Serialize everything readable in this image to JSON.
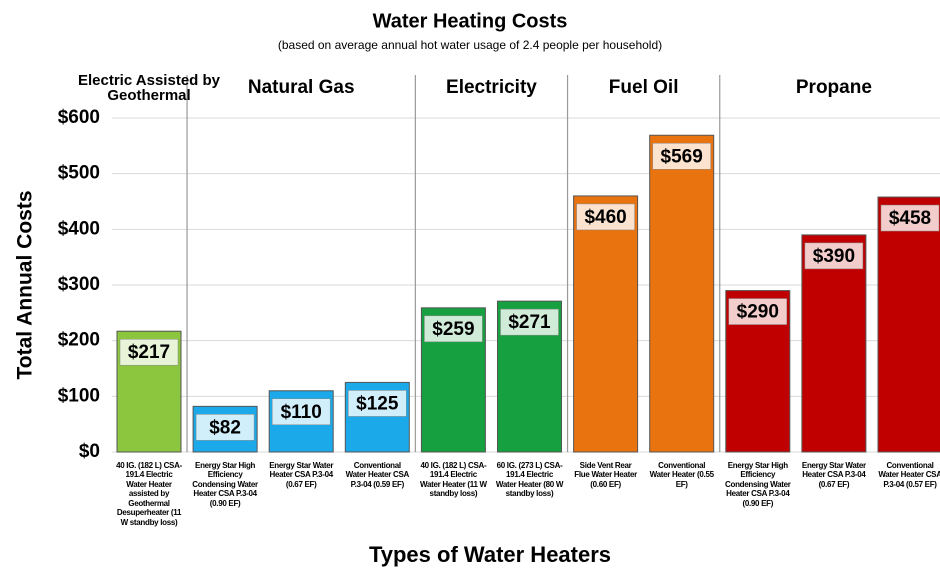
{
  "chart_data": {
    "type": "bar",
    "title": "Water Heating Costs",
    "subtitle": "(based on average annual hot water usage of 2.4 people per household)",
    "y_label": "Total Annual Costs",
    "x_label": "Types  of  Water Heaters",
    "ylim": [
      0,
      600
    ],
    "yticks": [
      {
        "value": 0,
        "label": "$0"
      },
      {
        "value": 100,
        "label": "$100"
      },
      {
        "value": 200,
        "label": "$200"
      },
      {
        "value": 300,
        "label": "$300"
      },
      {
        "value": 400,
        "label": "$400"
      },
      {
        "value": 500,
        "label": "$500"
      },
      {
        "value": 600,
        "label": "$600"
      }
    ],
    "grid": true,
    "groups": [
      {
        "name": "Electric Assisted by Geothermal",
        "color": "#8cc63f",
        "categories": [
          "40 IG. (182 L) CSA-191.4 Electric Water Heater assisted by Geothermal Desuperheater (11 W standby loss)"
        ],
        "values": [
          217
        ],
        "value_labels": [
          "$217"
        ]
      },
      {
        "name": "Natural Gas",
        "color": "#1ba9ea",
        "categories": [
          "Energy Star High Efficiency Condensing Water Heater CSA P.3-04 (0.90 EF)",
          "Energy Star Water Heater CSA P.3-04 (0.67 EF)",
          "Conventional Water Heater CSA P.3-04 (0.59 EF)"
        ],
        "values": [
          82,
          110,
          125
        ],
        "value_labels": [
          "$82",
          "$110",
          "$125"
        ]
      },
      {
        "name": "Electricity",
        "color": "#16a040",
        "categories": [
          "40 IG. (182 L) CSA-191.4 Electric Water Heater (11 W standby loss)",
          "60 IG. (273 L) CSA-191.4 Electric Water Heater (80 W standby loss)"
        ],
        "values": [
          259,
          271
        ],
        "value_labels": [
          "$259",
          "$271"
        ]
      },
      {
        "name": "Fuel Oil",
        "color": "#e8730f",
        "categories": [
          "Side Vent Rear Flue Water Heater (0.60 EF)",
          "Conventional Water Heater (0.55 EF)"
        ],
        "values": [
          460,
          569
        ],
        "value_labels": [
          "$460",
          "$569"
        ]
      },
      {
        "name": "Propane",
        "color": "#c00000",
        "categories": [
          "Energy Star High Efficiency Condensing Water Heater CSA P.3-04 (0.90 EF)",
          "Energy Star Water Heater CSA P.3-04 (0.67 EF)",
          "Conventional Water Heater CSA P.3-04 (0.57 EF)"
        ],
        "values": [
          290,
          390,
          458
        ],
        "value_labels": [
          "$290",
          "$390",
          "$458"
        ]
      }
    ]
  }
}
